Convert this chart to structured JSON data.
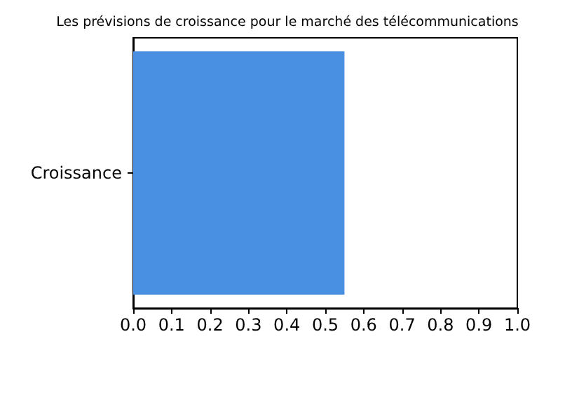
{
  "chart_data": {
    "type": "bar",
    "orientation": "horizontal",
    "title": "Les prévisions de croissance pour le marché des télécommunications",
    "categories": [
      "Croissance"
    ],
    "values": [
      0.55
    ],
    "color": "#4a90e2",
    "xlim": [
      0,
      1
    ],
    "xticks": [
      {
        "value": 0,
        "label": "0.0"
      },
      0.1,
      0.2,
      0.3,
      0.4,
      0.5,
      0.6,
      0.7,
      0.8,
      0.9,
      {
        "value": 1,
        "label": "1.0"
      }
    ],
    "grid": false
  }
}
